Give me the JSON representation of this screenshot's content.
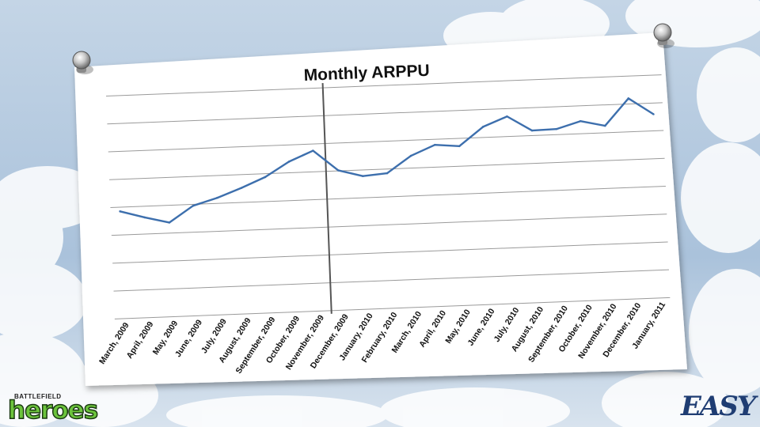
{
  "chart_data": {
    "type": "line",
    "title": "Monthly ARPPU",
    "categories": [
      "March, 2009",
      "April, 2009",
      "May, 2009",
      "June, 2009",
      "July, 2009",
      "August, 2009",
      "September, 2009",
      "October, 2009",
      "November, 2009",
      "December, 2009",
      "January, 2010",
      "February, 2010",
      "March, 2010",
      "April, 2010",
      "May, 2010",
      "June, 2010",
      "July, 2010",
      "August, 2010",
      "September, 2010",
      "October, 2010",
      "November, 2010",
      "December, 2010",
      "January, 2011"
    ],
    "series": [
      {
        "values": [
          3.85,
          3.6,
          3.38,
          3.95,
          4.2,
          4.52,
          4.88,
          5.4,
          5.76,
          5.02,
          4.78,
          4.85,
          5.44,
          5.8,
          5.72,
          6.38,
          6.72,
          6.18,
          6.2,
          6.45,
          6.25,
          7.2,
          6.6
        ]
      }
    ],
    "ylim": [
      0,
      8
    ],
    "grid": true,
    "y_tick_labels_shown": false,
    "vertical_marker_between": [
      "November, 2009",
      "December, 2009"
    ],
    "line_color": "#3d6fad",
    "marker_color": "#555555"
  },
  "branding": {
    "left_logo_small": "BATTLEFIELD",
    "left_logo_big": "heroes",
    "right_logo": "EASY"
  }
}
